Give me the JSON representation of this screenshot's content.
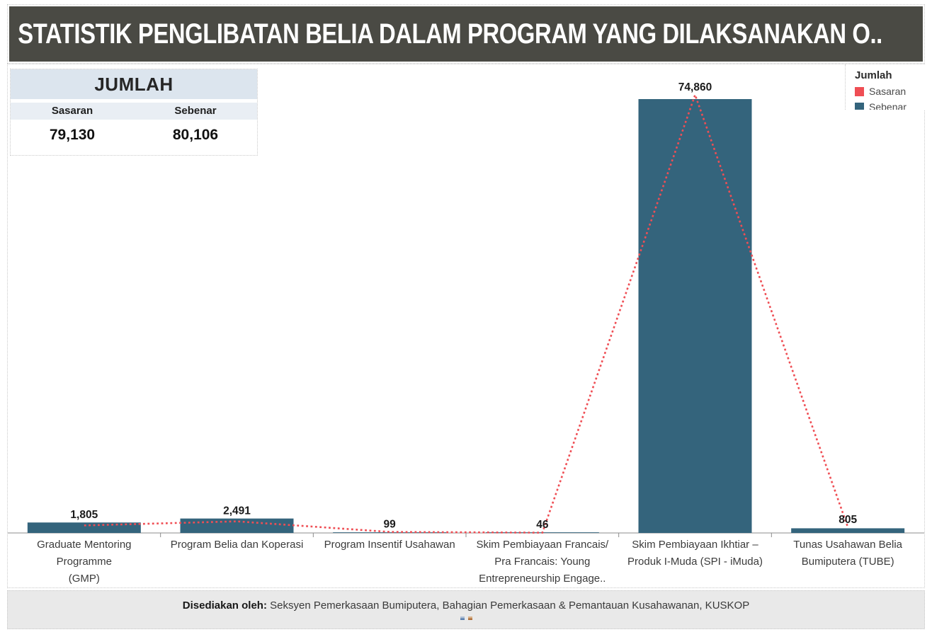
{
  "title": "STATISTIK PENGLIBATAN BELIA DALAM PROGRAM YANG DILAKSANAKAN O..",
  "summary_table": {
    "title": "JUMLAH",
    "columns": [
      "Sasaran",
      "Sebenar"
    ],
    "values": [
      "79,130",
      "80,106"
    ]
  },
  "legend": {
    "title": "Jumlah",
    "items": [
      {
        "label": "Sasaran",
        "color": "#ef4e54"
      },
      {
        "label": "Sebenar",
        "color": "#34647c"
      }
    ]
  },
  "footer": {
    "prefix": "Disediakan oleh:",
    "text": "Seksyen Pemerkasaan Bumiputera, Bahagian Pemerkasaan & Pemantauan Kusahawanan, KUSKOP",
    "icons": [
      "tiny-image-placeholder",
      "tiny-image-placeholder"
    ]
  },
  "colors": {
    "header_bg": "#4a4a44",
    "bar_sebenar": "#34647c",
    "line_sasaran": "#ef4e54",
    "summary_title_bg": "#dce5ee",
    "summary_header_bg": "#e9eef4",
    "footer_bg": "#e9e9e9"
  },
  "chart_data": {
    "type": "bar",
    "title": "",
    "xlabel": "",
    "ylabel": "",
    "ylim": [
      0,
      80000
    ],
    "grid": false,
    "legend_position": "top-right",
    "categories": [
      "Graduate Mentoring Programme (GMP)",
      "Program Belia dan Koperasi",
      "Program Insentif Usahawan",
      "Skim Pembiayaan Francais/ Pra Francais: Young Entrepreneurship Engage..",
      "Skim Pembiayaan Ikhtiar – Produk I-Muda (SPI - iMuda)",
      "Tunas Usahawan Belia Bumiputera (TUBE)"
    ],
    "category_lines": [
      [
        "Graduate Mentoring",
        "Programme",
        "(GMP)"
      ],
      [
        "Program Belia dan Koperasi"
      ],
      [
        "Program Insentif Usahawan"
      ],
      [
        "Skim Pembiayaan Francais/",
        "Pra Francais: Young",
        "Entrepreneurship Engage.."
      ],
      [
        "Skim Pembiayaan Ikhtiar –",
        "Produk I-Muda (SPI - iMuda)"
      ],
      [
        "Tunas Usahawan Belia",
        "Bumiputera (TUBE)"
      ]
    ],
    "series": [
      {
        "name": "Sebenar",
        "type": "bar",
        "color": "#34647c",
        "values": [
          1805,
          2491,
          99,
          46,
          74860,
          805
        ],
        "value_labels": [
          "1,805",
          "2,491",
          "99",
          "46",
          "74,860",
          "805"
        ]
      },
      {
        "name": "Sasaran",
        "type": "line",
        "line_style": "dotted",
        "color": "#ef4e54",
        "values_estimated_from_pixels": true,
        "values": [
          1300,
          2000,
          180,
          50,
          75600,
          1000
        ]
      }
    ]
  }
}
